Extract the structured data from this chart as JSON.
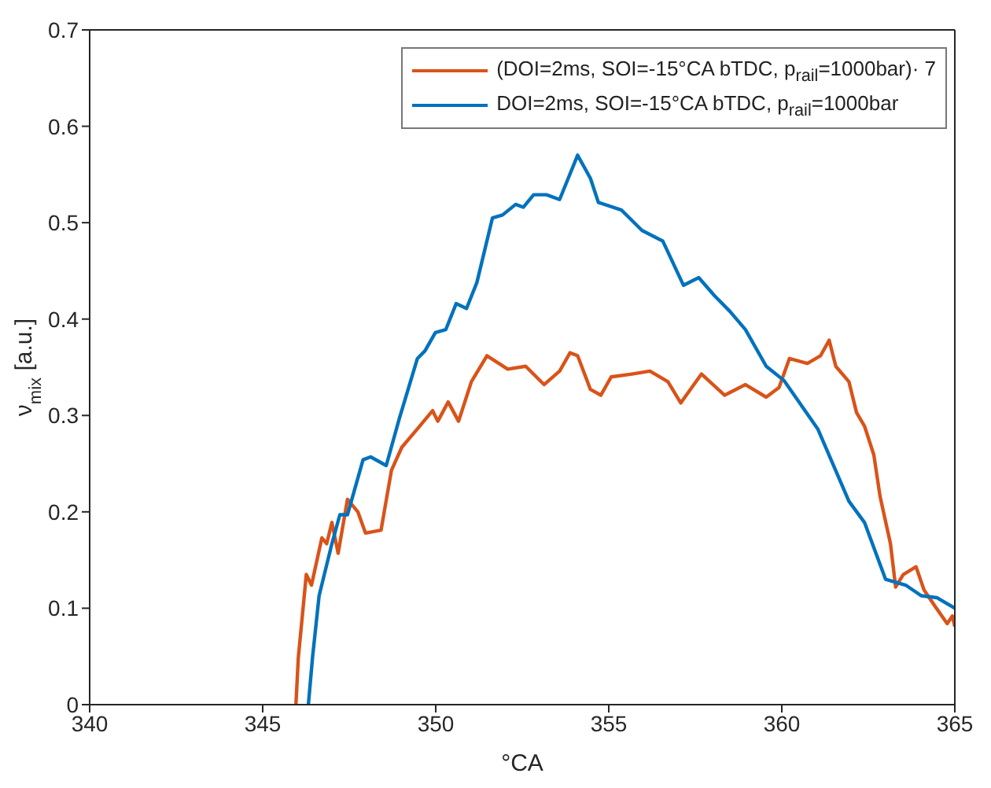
{
  "chart_data": {
    "type": "line",
    "xlabel": "°CA",
    "ylabel": "ν$_{mix}$ [a.u.]",
    "xlim": [
      340,
      365
    ],
    "xticks": [
      340,
      345,
      350,
      355,
      360,
      365
    ],
    "ylim": [
      0,
      0.7
    ],
    "yticks": [
      0,
      0.1,
      0.2,
      0.3,
      0.4,
      0.5,
      0.6,
      0.7
    ],
    "grid": false,
    "legend": "top right",
    "line_style": "solid",
    "marker": "none",
    "series": [
      {
        "name": "(DOI=2ms, SOI=-15°CA bTDC, p$_{rail}$=1000bar)· 7",
        "color": "#d95319",
        "x": [
          345.96,
          346.03,
          346.26,
          346.41,
          346.71,
          346.85,
          347.0,
          347.18,
          347.45,
          347.75,
          347.97,
          348.42,
          348.72,
          349.02,
          349.47,
          349.91,
          350.06,
          350.36,
          350.66,
          351.03,
          351.48,
          352.08,
          352.6,
          353.13,
          353.58,
          353.88,
          354.1,
          354.47,
          354.77,
          355.07,
          355.67,
          356.19,
          356.71,
          357.08,
          357.68,
          358.35,
          358.95,
          359.55,
          359.92,
          360.22,
          360.74,
          361.12,
          361.37,
          361.56,
          361.94,
          362.16,
          362.39,
          362.66,
          362.84,
          363.14,
          363.29,
          363.51,
          363.88,
          364.11,
          364.41,
          364.78,
          364.93,
          365.0
        ],
        "values": [
          0,
          0.049,
          0.135,
          0.124,
          0.173,
          0.167,
          0.189,
          0.157,
          0.213,
          0.2,
          0.178,
          0.181,
          0.243,
          0.267,
          0.286,
          0.305,
          0.294,
          0.314,
          0.294,
          0.335,
          0.362,
          0.348,
          0.351,
          0.332,
          0.346,
          0.365,
          0.362,
          0.327,
          0.321,
          0.34,
          0.343,
          0.346,
          0.335,
          0.313,
          0.343,
          0.321,
          0.332,
          0.319,
          0.329,
          0.359,
          0.354,
          0.362,
          0.378,
          0.351,
          0.335,
          0.303,
          0.289,
          0.259,
          0.216,
          0.167,
          0.122,
          0.135,
          0.143,
          0.119,
          0.103,
          0.084,
          0.092,
          0.081
        ]
      },
      {
        "name": "DOI=2ms, SOI=-15°CA bTDC, p$_{rail}$=1000bar",
        "color": "#0072bd",
        "x": [
          346.32,
          346.44,
          346.63,
          347.0,
          347.23,
          347.45,
          347.9,
          348.12,
          348.57,
          348.95,
          349.47,
          349.69,
          349.99,
          350.29,
          350.59,
          350.89,
          351.19,
          351.64,
          351.93,
          352.31,
          352.53,
          352.83,
          353.2,
          353.58,
          354.1,
          354.47,
          354.7,
          355.37,
          355.96,
          356.56,
          357.16,
          357.6,
          358.06,
          358.5,
          358.95,
          359.55,
          360.07,
          361.04,
          361.94,
          362.39,
          363.0,
          363.58,
          364.03,
          364.48,
          365.0
        ],
        "values": [
          0,
          0.049,
          0.113,
          0.167,
          0.197,
          0.197,
          0.254,
          0.257,
          0.248,
          0.297,
          0.359,
          0.367,
          0.386,
          0.389,
          0.416,
          0.411,
          0.438,
          0.505,
          0.508,
          0.519,
          0.516,
          0.529,
          0.529,
          0.524,
          0.57,
          0.546,
          0.521,
          0.513,
          0.492,
          0.481,
          0.435,
          0.443,
          0.424,
          0.408,
          0.389,
          0.351,
          0.336,
          0.286,
          0.211,
          0.189,
          0.13,
          0.124,
          0.113,
          0.111,
          0.1
        ]
      }
    ]
  }
}
